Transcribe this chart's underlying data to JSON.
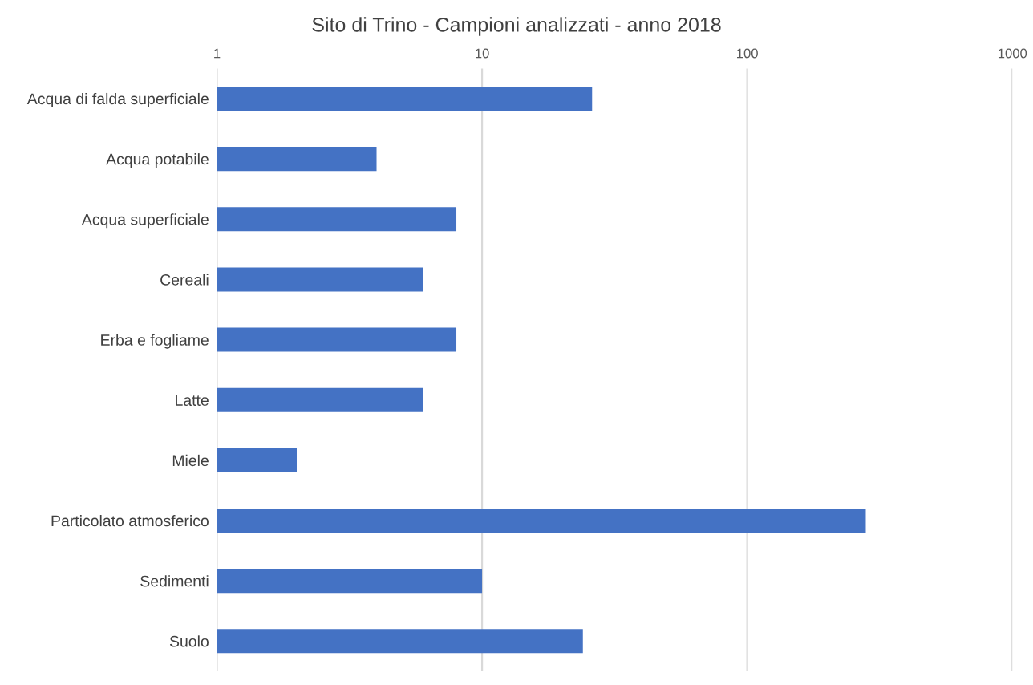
{
  "chart_data": {
    "type": "bar",
    "orientation": "horizontal",
    "log": "x",
    "title": "Sito di Trino - Campioni analizzati - anno 2018",
    "categories": [
      "Acqua di falda superficiale",
      "Acqua potabile",
      "Acqua superficiale",
      "Cereali",
      "Erba e fogliame",
      "Latte",
      "Miele",
      "Particolato atmosferico",
      "Sedimenti",
      "Suolo"
    ],
    "values": [
      26,
      4,
      8,
      6,
      8,
      6,
      2,
      280,
      10,
      24
    ],
    "color": "#4472c4",
    "xlim": [
      1,
      1000
    ],
    "xticks": [
      1,
      10,
      100,
      1000
    ],
    "grid": "x",
    "legend": false
  }
}
